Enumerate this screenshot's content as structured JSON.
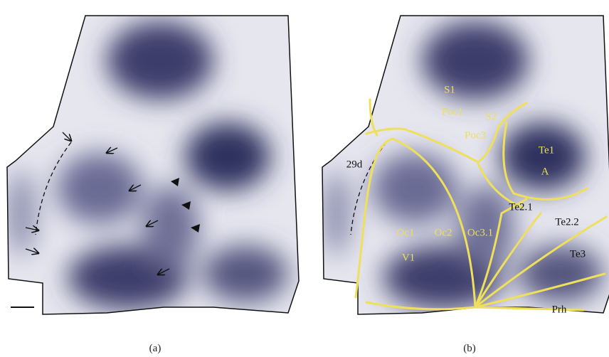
{
  "panel_a": {
    "label": "(a)"
  },
  "panel_b": {
    "label": "(b)",
    "regions": [
      "S1",
      "Poc1",
      "S2",
      "Poc3",
      "Te1",
      "A",
      "29d",
      "Te2.1",
      "Te2.2",
      "Te3",
      "Oc1",
      "Oc2",
      "Oc3.1",
      "V1",
      "Prh"
    ]
  }
}
